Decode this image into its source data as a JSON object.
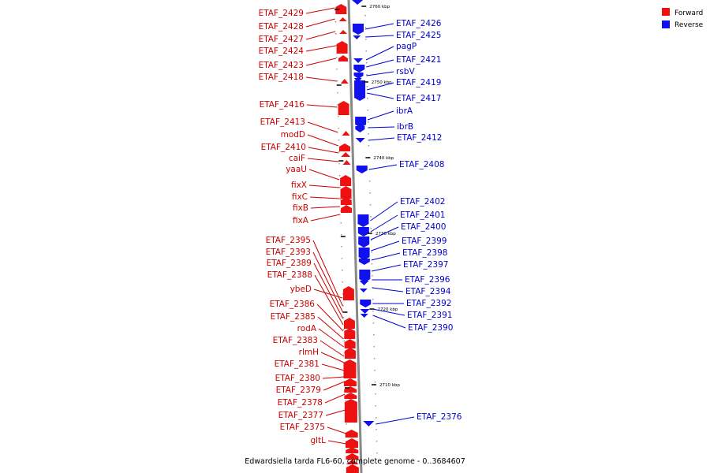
{
  "caption": "Edwardsiella tarda FL6-60, complete genome - 0..3684607",
  "legend": [
    {
      "label": "Forward",
      "color": "#ee1111"
    },
    {
      "label": "Reverse",
      "color": "#1111ee"
    }
  ],
  "colors": {
    "forward": "#ee1111",
    "reverse": "#1111ee",
    "forward_label": "#cc0000",
    "reverse_label": "#0000cc",
    "backbone": "#888888"
  },
  "ticks": [
    "2760 kbp",
    "2750 kbp",
    "2740 kbp",
    "2730 kbp",
    "2720 kbp",
    "2710 kbp"
  ],
  "forward_genes": [
    "ETAF_2429",
    "ETAF_2428",
    "ETAF_2427",
    "ETAF_2424",
    "ETAF_2423",
    "ETAF_2418",
    "ETAF_2416",
    "ETAF_2413",
    "modD",
    "ETAF_2410",
    "caiF",
    "yaaU",
    "fixX",
    "fixC",
    "fixB",
    "fixA",
    "ETAF_2395",
    "ETAF_2393",
    "ETAF_2389",
    "ETAF_2388",
    "ybeD",
    "ETAF_2386",
    "ETAF_2385",
    "rodA",
    "ETAF_2383",
    "rlmH",
    "ETAF_2381",
    "ETAF_2380",
    "ETAF_2379",
    "ETAF_2378",
    "ETAF_2377",
    "ETAF_2375",
    "gltL"
  ],
  "reverse_genes": [
    "ETAF_2426",
    "ETAF_2425",
    "pagP",
    "ETAF_2421",
    "rsbV",
    "ETAF_2419",
    "ETAF_2417",
    "ibrA",
    "ibrB",
    "ETAF_2412",
    "ETAF_2408",
    "ETAF_2402",
    "ETAF_2401",
    "ETAF_2400",
    "ETAF_2399",
    "ETAF_2398",
    "ETAF_2397",
    "ETAF_2396",
    "ETAF_2394",
    "ETAF_2392",
    "ETAF_2391",
    "ETAF_2390",
    "ETAF_2376"
  ]
}
